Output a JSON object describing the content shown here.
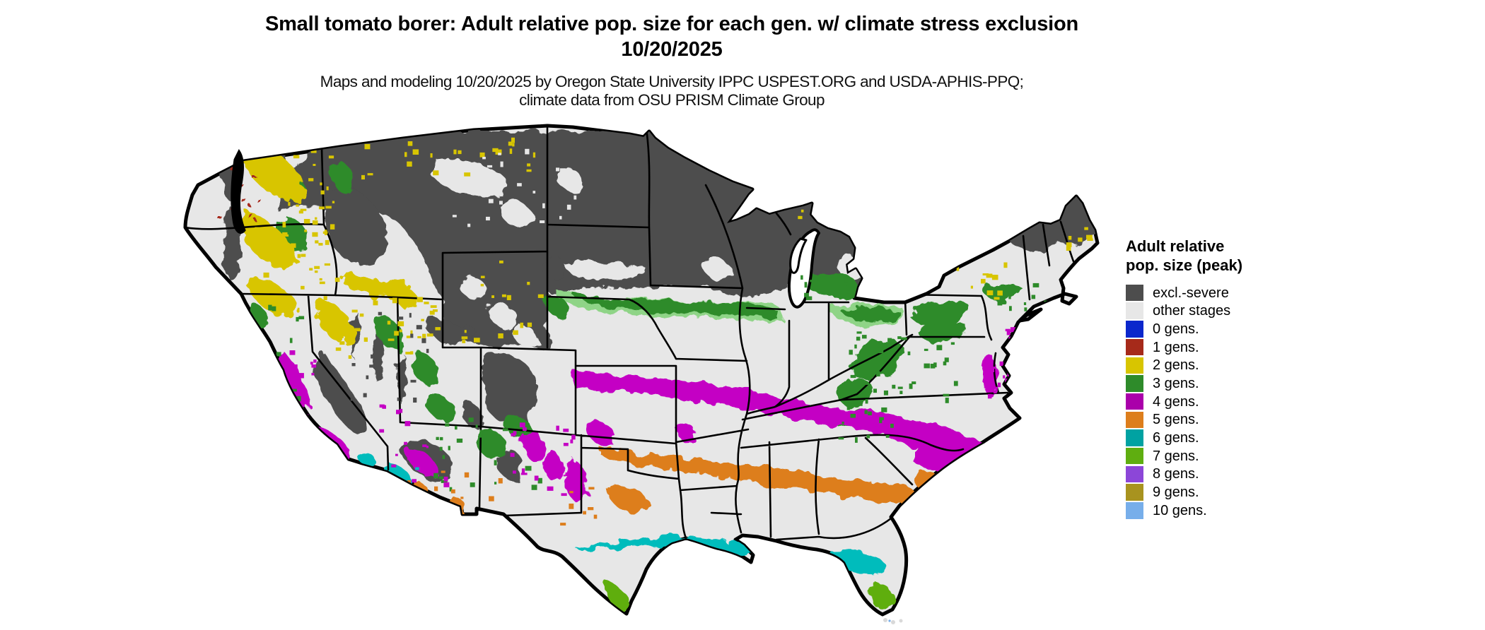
{
  "header": {
    "title": "Small tomato borer: Adult relative pop. size for each gen. w/ climate stress exclusion 10/20/2025",
    "subtitle": "Maps and modeling 10/20/2025 by Oregon State University IPPC USPEST.ORG and USDA-APHIS-PPQ; climate data from OSU PRISM Climate Group"
  },
  "legend": {
    "title": "Adult relative pop. size (peak)",
    "items": [
      {
        "key": "excl",
        "label": "excl.-severe",
        "color": "#4D4D4D"
      },
      {
        "key": "other",
        "label": "other stages",
        "color": "#E7E7E7"
      },
      {
        "key": "g0",
        "label": "0 gens.",
        "color": "#0B27CC"
      },
      {
        "key": "g1",
        "label": "1 gens.",
        "color": "#A62A1A"
      },
      {
        "key": "g2",
        "label": "2 gens.",
        "color": "#D8C500"
      },
      {
        "key": "g3",
        "label": "3 gens.",
        "color": "#2E8B2A"
      },
      {
        "key": "g4",
        "label": "4 gens.",
        "color": "#AA00AA"
      },
      {
        "key": "g5",
        "label": "5 gens.",
        "color": "#DD7E1C"
      },
      {
        "key": "g6",
        "label": "6 gens.",
        "color": "#00A2A2"
      },
      {
        "key": "g7",
        "label": "7 gens.",
        "color": "#5FAE10"
      },
      {
        "key": "g8",
        "label": "8 gens.",
        "color": "#8C46D8"
      },
      {
        "key": "g9",
        "label": "9 gens.",
        "color": "#A8931F"
      },
      {
        "key": "g10",
        "label": "10 gens.",
        "color": "#77AEEA"
      }
    ]
  },
  "map": {
    "region": "Contiguous United States",
    "base_land_value": "other stages",
    "water_color": "#FFFFFF",
    "state_border_color": "#000000",
    "visible_bands_north_to_south": [
      "excl.-severe",
      "3 gens.",
      "other stages",
      "4 gens.",
      "5 gens.",
      "6 gens.",
      "7 gens."
    ]
  }
}
